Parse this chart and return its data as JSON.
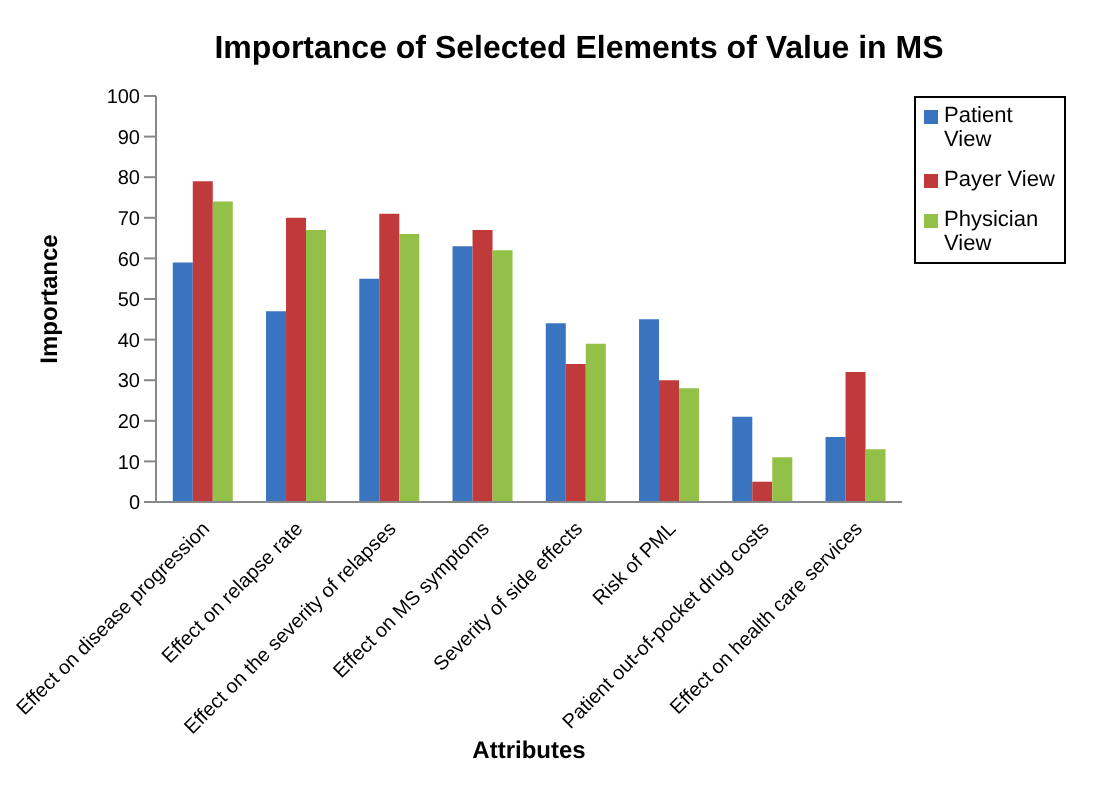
{
  "chart_data": {
    "type": "bar",
    "title": "Importance of Selected Elements of Value in MS",
    "xlabel": "Attributes",
    "ylabel": "Importance",
    "categories": [
      "Effect on disease progression",
      "Effect on relapse rate",
      "Effect on the severity of relapses",
      "Effect on MS symptoms",
      "Severity of side effects",
      "Risk of PML",
      "Patient out-of-pocket drug costs",
      "Effect on health care services"
    ],
    "series": [
      {
        "name": "Patient View",
        "color": "#3a73c0",
        "values": [
          59,
          47,
          55,
          63,
          44,
          45,
          21,
          16
        ]
      },
      {
        "name": "Payer View",
        "color": "#c0393b",
        "values": [
          79,
          70,
          71,
          67,
          34,
          30,
          5,
          32
        ]
      },
      {
        "name": "Physician View",
        "color": "#93c047",
        "values": [
          74,
          67,
          66,
          62,
          39,
          28,
          11,
          13
        ]
      }
    ],
    "ylim": [
      0,
      100
    ],
    "yticks": [
      0,
      10,
      20,
      30,
      40,
      50,
      60,
      70,
      80,
      90,
      100
    ],
    "grid": false,
    "legend": "top right"
  }
}
